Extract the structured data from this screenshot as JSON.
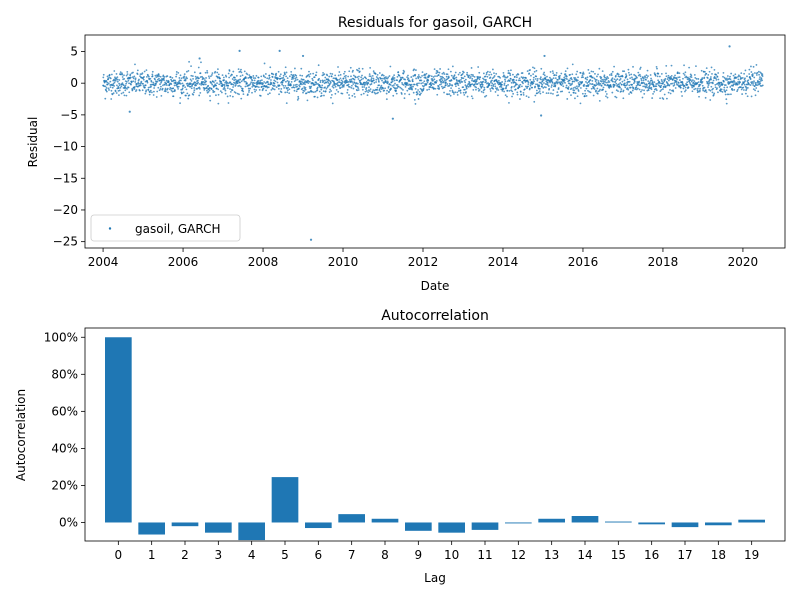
{
  "chart_data": [
    {
      "type": "scatter",
      "title": "Residuals for gasoil, GARCH",
      "xlabel": "Date",
      "ylabel": "Residual",
      "x_ticks": [
        "2004",
        "2006",
        "2008",
        "2010",
        "2012",
        "2014",
        "2016",
        "2018",
        "2020"
      ],
      "y_ticks": [
        "5",
        "0",
        "−5",
        "−10",
        "−15",
        "−20",
        "−25"
      ],
      "xlim": [
        "2003-07-20",
        "2021-01-20"
      ],
      "ylim": [
        -26,
        7.6
      ],
      "legend": {
        "placement": "lower-left",
        "entry": "gasoil, GARCH"
      },
      "series_color": "#1f77b4",
      "date_range": [
        "2004-01-01",
        "2020-07-01"
      ],
      "typical_spread": [
        -2.5,
        2.5
      ],
      "outliers": [
        {
          "x": "2009-03-15",
          "y": -24.7
        },
        {
          "x": "2011-04-01",
          "y": -5.6
        },
        {
          "x": "2014-12-15",
          "y": -5.1
        },
        {
          "x": "2004-09-01",
          "y": -4.5
        },
        {
          "x": "2007-06-01",
          "y": 5.1
        },
        {
          "x": "2008-06-01",
          "y": 5.1
        },
        {
          "x": "2019-09-01",
          "y": 5.8
        },
        {
          "x": "2015-01-15",
          "y": 4.3
        },
        {
          "x": "2006-06-01",
          "y": 3.9
        },
        {
          "x": "2009-01-01",
          "y": 4.3
        }
      ]
    },
    {
      "type": "bar",
      "title": "Autocorrelation",
      "xlabel": "Lag",
      "ylabel": "Autocorrelation",
      "categories": [
        "0",
        "1",
        "2",
        "3",
        "4",
        "5",
        "6",
        "7",
        "8",
        "9",
        "10",
        "11",
        "12",
        "13",
        "14",
        "15",
        "16",
        "17",
        "18",
        "19"
      ],
      "values": [
        1.0,
        -0.065,
        -0.02,
        -0.055,
        -0.095,
        0.245,
        -0.03,
        0.045,
        0.02,
        -0.045,
        -0.055,
        -0.04,
        -0.005,
        0.02,
        0.035,
        0.005,
        -0.01,
        -0.025,
        -0.015,
        0.015
      ],
      "y_ticks": [
        "100%",
        "80%",
        "60%",
        "40%",
        "20%",
        "0%"
      ],
      "ylim": [
        -0.1,
        1.05
      ],
      "bar_color": "#1f77b4"
    }
  ]
}
